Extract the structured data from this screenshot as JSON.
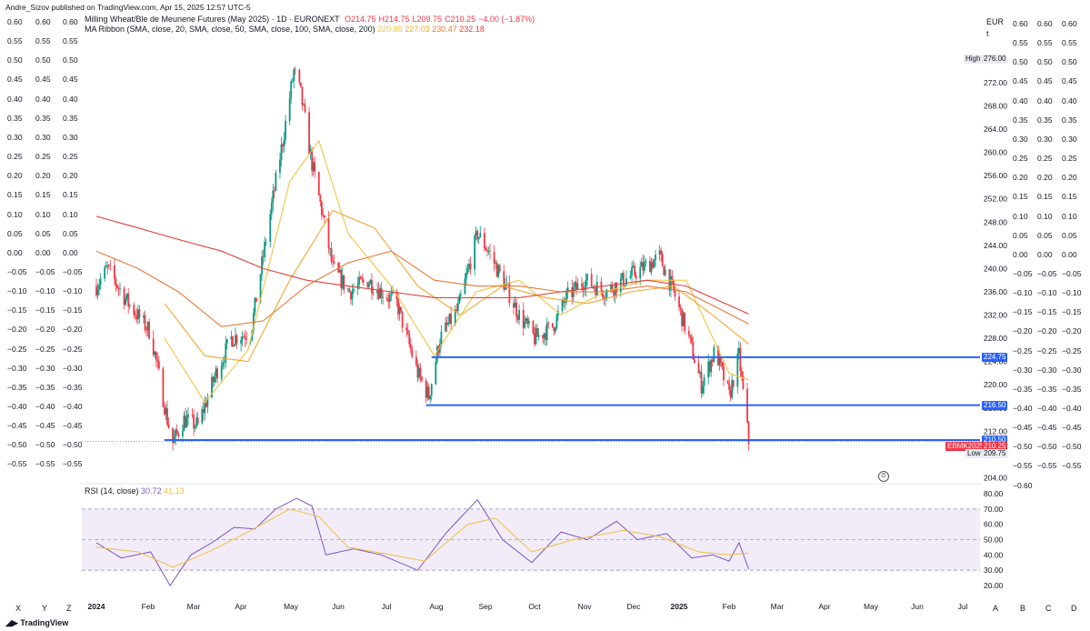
{
  "publisher": "Andre_Sizov published on TradingView.com, Apr 15, 2025 12:57 UTC-5",
  "footer_logo": "TradingView",
  "legend": {
    "symbol_title": "Milling Wheat/Ble de Meunerie Futures (May 2025) · 1D · EURONEXT",
    "ohlc": [
      {
        "label": "O",
        "value": "214.75"
      },
      {
        "label": "H",
        "value": "214.75"
      },
      {
        "label": "L",
        "value": "209.75"
      },
      {
        "label": "C",
        "value": "210.25"
      },
      {
        "label": "",
        "value": "−4.00 (−1.87%)"
      }
    ],
    "ma_title": "MA Ribbon (SMA, close, 20, SMA, close, 50, SMA, close, 100, SMA, close, 200)",
    "ma_values": [
      "220.85",
      "227.03",
      "230.47",
      "232.18"
    ],
    "rsi_title": "RSI (14, close)",
    "rsi_values": [
      "30.72",
      "41.13"
    ]
  },
  "currency": "EUR",
  "unit": "t",
  "left_scale_rows": [
    [
      "0.60",
      "0.60",
      "0.60"
    ],
    [
      "0.55",
      "0.55",
      "0.55"
    ],
    [
      "0.50",
      "0.50",
      "0.50"
    ],
    [
      "0.45",
      "0.45",
      "0.45"
    ],
    [
      "0.40",
      "0.40",
      "0.40"
    ],
    [
      "0.35",
      "0.35",
      "0.35"
    ],
    [
      "0.30",
      "0.30",
      "0.30"
    ],
    [
      "0.25",
      "0.25",
      "0.25"
    ],
    [
      "0.20",
      "0.20",
      "0.20"
    ],
    [
      "0.15",
      "0.15",
      "0.15"
    ],
    [
      "0.10",
      "0.10",
      "0.10"
    ],
    [
      "0.05",
      "0.05",
      "0.05"
    ],
    [
      "0.00",
      "0.00",
      "0.00"
    ],
    [
      "−0.05",
      "−0.05",
      "−0.05"
    ],
    [
      "−0.10",
      "−0.10",
      "−0.10"
    ],
    [
      "−0.15",
      "−0.15",
      "−0.15"
    ],
    [
      "−0.20",
      "−0.20",
      "−0.20"
    ],
    [
      "−0.25",
      "−0.25",
      "−0.25"
    ],
    [
      "−0.30",
      "−0.30",
      "−0.30"
    ],
    [
      "−0.35",
      "−0.35",
      "−0.35"
    ],
    [
      "−0.40",
      "−0.40",
      "−0.40"
    ],
    [
      "−0.45",
      "−0.45",
      "−0.45"
    ],
    [
      "−0.50",
      "−0.50",
      "−0.50"
    ],
    [
      "−0.55",
      "−0.55",
      "−0.55"
    ]
  ],
  "right_scale_rows": [
    [
      "0.60",
      "0.60",
      "0.60"
    ],
    [
      "0.55",
      "0.55",
      "0.55"
    ],
    [
      "0.50",
      "0.50",
      "0.50"
    ],
    [
      "0.45",
      "0.45",
      "0.45"
    ],
    [
      "0.40",
      "0.40",
      "0.40"
    ],
    [
      "0.35",
      "0.35",
      "0.35"
    ],
    [
      "0.30",
      "0.30",
      "0.30"
    ],
    [
      "0.25",
      "0.25",
      "0.25"
    ],
    [
      "0.20",
      "0.20",
      "0.20"
    ],
    [
      "0.15",
      "0.15",
      "0.15"
    ],
    [
      "0.10",
      "0.10",
      "0.10"
    ],
    [
      "0.05",
      "0.05",
      "0.05"
    ],
    [
      "0.00",
      "0.00",
      "0.00"
    ],
    [
      "−0.05",
      "−0.05",
      "−0.05"
    ],
    [
      "−0.10",
      "−0.10",
      "−0.10"
    ],
    [
      "−0.15",
      "−0.15",
      "−0.15"
    ],
    [
      "−0.20",
      "−0.20",
      "−0.20"
    ],
    [
      "−0.25",
      "−0.25",
      "−0.25"
    ],
    [
      "−0.30",
      "−0.30",
      "−0.30"
    ],
    [
      "−0.35",
      "−0.35",
      "−0.35"
    ],
    [
      "−0.40",
      "−0.40",
      "−0.40"
    ],
    [
      "−0.45",
      "−0.45",
      "−0.45"
    ],
    [
      "−0.50",
      "−0.50",
      "−0.50"
    ],
    [
      "−0.55",
      "−0.55",
      "−0.55"
    ],
    [
      "−0.60",
      "",
      ""
    ]
  ],
  "bottom_left_letters": [
    "X",
    "Y",
    "Z"
  ],
  "bottom_right_letters": [
    "A",
    "B",
    "C",
    "D"
  ],
  "colors": {
    "up": "#089981",
    "down": "#f23645",
    "ma20": "#f5c242",
    "ma50": "#f0a830",
    "ma100": "#e8793a",
    "ma200": "#e0413c",
    "level_line": "#2962ff",
    "rsi": "#7e57c2",
    "rsi_ma": "#f0c040",
    "rsi_band": "#ede7f6"
  },
  "chart_data": {
    "type": "candlestick",
    "ylim": [
      203,
      278
    ],
    "y_ticks": [
      "276.00",
      "272.00",
      "268.00",
      "264.00",
      "260.00",
      "256.00",
      "252.00",
      "248.00",
      "244.00",
      "240.00",
      "236.00",
      "232.00",
      "228.00",
      "224.00",
      "220.00",
      "216.00",
      "212.00",
      "208.00",
      "204.00"
    ],
    "x_ticks": [
      "2024",
      "Feb",
      "Mar",
      "Apr",
      "May",
      "Jun",
      "Jul",
      "Aug",
      "Sep",
      "Oct",
      "Nov",
      "Dec",
      "2025",
      "Feb",
      "Mar",
      "Apr",
      "May",
      "Jun",
      "Jul"
    ],
    "price_path": [
      [
        "2024-01-02",
        237
      ],
      [
        "2024-01-10",
        240
      ],
      [
        "2024-01-25",
        234
      ],
      [
        "2024-02-10",
        229
      ],
      [
        "2024-02-22",
        214
      ],
      [
        "2024-02-26",
        210
      ],
      [
        "2024-03-05",
        214
      ],
      [
        "2024-03-15",
        213
      ],
      [
        "2024-03-28",
        222
      ],
      [
        "2024-04-08",
        228
      ],
      [
        "2024-04-22",
        229
      ],
      [
        "2024-05-05",
        248
      ],
      [
        "2024-05-15",
        262
      ],
      [
        "2024-05-23",
        274
      ],
      [
        "2024-05-28",
        270
      ],
      [
        "2024-06-05",
        258
      ],
      [
        "2024-06-12",
        250
      ],
      [
        "2024-06-20",
        240
      ],
      [
        "2024-07-02",
        236
      ],
      [
        "2024-07-15",
        238
      ],
      [
        "2024-07-25",
        236
      ],
      [
        "2024-08-05",
        234
      ],
      [
        "2024-08-20",
        222
      ],
      [
        "2024-08-28",
        218
      ],
      [
        "2024-09-05",
        228
      ],
      [
        "2024-09-18",
        233
      ],
      [
        "2024-10-02",
        246
      ],
      [
        "2024-10-10",
        243
      ],
      [
        "2024-10-20",
        238
      ],
      [
        "2024-11-01",
        232
      ],
      [
        "2024-11-12",
        228
      ],
      [
        "2024-11-25",
        230
      ],
      [
        "2024-12-05",
        235
      ],
      [
        "2024-12-18",
        238
      ],
      [
        "2025-01-02",
        236
      ],
      [
        "2025-01-15",
        238
      ],
      [
        "2025-01-28",
        240
      ],
      [
        "2025-02-10",
        242
      ],
      [
        "2025-02-20",
        236
      ],
      [
        "2025-03-03",
        228
      ],
      [
        "2025-03-12",
        220
      ],
      [
        "2025-03-22",
        226
      ],
      [
        "2025-04-01",
        218
      ],
      [
        "2025-04-08",
        225
      ],
      [
        "2025-04-15",
        210.25
      ]
    ],
    "ma_series": [
      {
        "name": "SMA 20",
        "points": [
          [
            "2024-02-20",
            228
          ],
          [
            "2024-03-20",
            217
          ],
          [
            "2024-04-20",
            226
          ],
          [
            "2024-05-20",
            255
          ],
          [
            "2024-06-10",
            262
          ],
          [
            "2024-07-01",
            246
          ],
          [
            "2024-08-01",
            237
          ],
          [
            "2024-09-01",
            225
          ],
          [
            "2024-10-01",
            236
          ],
          [
            "2024-11-01",
            238
          ],
          [
            "2024-12-01",
            232
          ],
          [
            "2025-01-01",
            236
          ],
          [
            "2025-02-01",
            238
          ],
          [
            "2025-03-01",
            238
          ],
          [
            "2025-04-01",
            222
          ],
          [
            "2025-04-15",
            220.85
          ]
        ]
      },
      {
        "name": "SMA 50",
        "points": [
          [
            "2024-02-20",
            234
          ],
          [
            "2024-03-20",
            225
          ],
          [
            "2024-04-20",
            224
          ],
          [
            "2024-05-20",
            238
          ],
          [
            "2024-06-20",
            250
          ],
          [
            "2024-07-20",
            247
          ],
          [
            "2024-08-20",
            237
          ],
          [
            "2024-09-20",
            232
          ],
          [
            "2024-10-20",
            237
          ],
          [
            "2024-11-20",
            235
          ],
          [
            "2024-12-20",
            234
          ],
          [
            "2025-01-20",
            236
          ],
          [
            "2025-02-20",
            237
          ],
          [
            "2025-03-20",
            232
          ],
          [
            "2025-04-15",
            227.03
          ]
        ]
      },
      {
        "name": "SMA 100",
        "points": [
          [
            "2024-01-02",
            243
          ],
          [
            "2024-02-01",
            240
          ],
          [
            "2024-03-01",
            236
          ],
          [
            "2024-04-01",
            230
          ],
          [
            "2024-05-01",
            231
          ],
          [
            "2024-06-01",
            237
          ],
          [
            "2024-07-01",
            241
          ],
          [
            "2024-08-01",
            243
          ],
          [
            "2024-09-01",
            238
          ],
          [
            "2024-10-01",
            237
          ],
          [
            "2024-11-01",
            237
          ],
          [
            "2024-12-01",
            236
          ],
          [
            "2025-01-01",
            236
          ],
          [
            "2025-02-01",
            237
          ],
          [
            "2025-03-01",
            236
          ],
          [
            "2025-04-15",
            230.47
          ]
        ]
      },
      {
        "name": "SMA 200",
        "points": [
          [
            "2024-01-02",
            249
          ],
          [
            "2024-02-01",
            247
          ],
          [
            "2024-03-01",
            245
          ],
          [
            "2024-04-01",
            243
          ],
          [
            "2024-05-01",
            240
          ],
          [
            "2024-06-01",
            238
          ],
          [
            "2024-07-01",
            237
          ],
          [
            "2024-08-01",
            236
          ],
          [
            "2024-09-01",
            235
          ],
          [
            "2024-10-01",
            235
          ],
          [
            "2024-11-01",
            235
          ],
          [
            "2024-12-01",
            236
          ],
          [
            "2025-01-01",
            237
          ],
          [
            "2025-02-01",
            238
          ],
          [
            "2025-03-01",
            237
          ],
          [
            "2025-04-15",
            232.18
          ]
        ]
      }
    ],
    "levels": [
      {
        "label": "224.75",
        "value": 224.75,
        "from": "2024-08-30"
      },
      {
        "label": "216.50",
        "value": 216.5,
        "from": "2024-08-26"
      },
      {
        "label": "210.50",
        "value": 210.5,
        "from": "2024-02-20"
      }
    ],
    "last_price": {
      "label": "EBMK2025",
      "value": "210.25"
    },
    "high": {
      "label": "High",
      "value": "276.00"
    },
    "low": {
      "label": "Low",
      "value": "209.75"
    },
    "rsi": {
      "ylim": [
        15,
        85
      ],
      "y_ticks": [
        "80.00",
        "70.00",
        "60.00",
        "50.00",
        "40.00",
        "30.00",
        "20.00"
      ],
      "band": [
        30,
        70
      ],
      "mid": 50,
      "path": [
        [
          "2024-01-02",
          48
        ],
        [
          "2024-01-20",
          38
        ],
        [
          "2024-02-10",
          42
        ],
        [
          "2024-02-24",
          20
        ],
        [
          "2024-03-10",
          40
        ],
        [
          "2024-03-25",
          48
        ],
        [
          "2024-04-10",
          58
        ],
        [
          "2024-04-25",
          57
        ],
        [
          "2024-05-10",
          70
        ],
        [
          "2024-05-25",
          77
        ],
        [
          "2024-06-05",
          72
        ],
        [
          "2024-06-15",
          40
        ],
        [
          "2024-07-05",
          44
        ],
        [
          "2024-07-25",
          40
        ],
        [
          "2024-08-20",
          30
        ],
        [
          "2024-09-10",
          55
        ],
        [
          "2024-10-02",
          76
        ],
        [
          "2024-10-20",
          50
        ],
        [
          "2024-11-10",
          35
        ],
        [
          "2024-12-01",
          55
        ],
        [
          "2024-12-20",
          50
        ],
        [
          "2025-01-10",
          62
        ],
        [
          "2025-01-25",
          50
        ],
        [
          "2025-02-15",
          54
        ],
        [
          "2025-03-05",
          38
        ],
        [
          "2025-03-20",
          40
        ],
        [
          "2025-04-01",
          36
        ],
        [
          "2025-04-08",
          48
        ],
        [
          "2025-04-15",
          30.72
        ]
      ],
      "ma_path": [
        [
          "2024-01-02",
          45
        ],
        [
          "2024-02-01",
          42
        ],
        [
          "2024-02-26",
          32
        ],
        [
          "2024-03-25",
          43
        ],
        [
          "2024-04-20",
          55
        ],
        [
          "2024-05-20",
          70
        ],
        [
          "2024-06-10",
          65
        ],
        [
          "2024-07-01",
          45
        ],
        [
          "2024-08-01",
          40
        ],
        [
          "2024-08-25",
          36
        ],
        [
          "2024-09-25",
          60
        ],
        [
          "2024-10-15",
          64
        ],
        [
          "2024-11-10",
          42
        ],
        [
          "2024-12-10",
          50
        ],
        [
          "2025-01-15",
          56
        ],
        [
          "2025-02-10",
          52
        ],
        [
          "2025-03-10",
          42
        ],
        [
          "2025-04-01",
          40
        ],
        [
          "2025-04-15",
          41.13
        ]
      ]
    }
  }
}
